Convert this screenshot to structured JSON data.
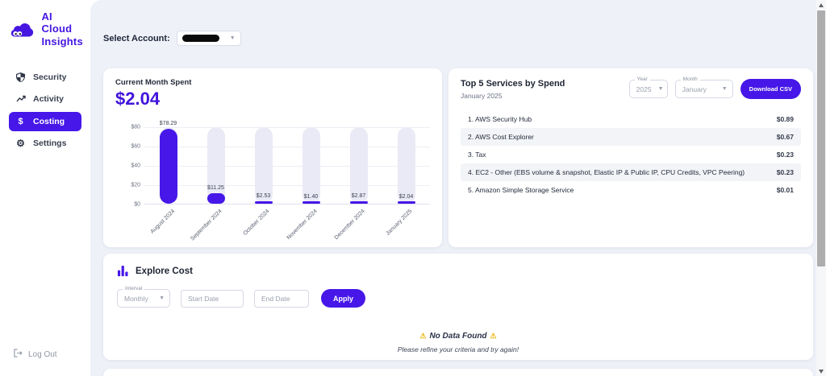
{
  "app": {
    "title_line1": "AI Cloud",
    "title_line2": "Insights"
  },
  "sidebar": {
    "items": [
      {
        "label": "Security"
      },
      {
        "label": "Activity"
      },
      {
        "label": "Costing"
      },
      {
        "label": "Settings"
      }
    ],
    "logout_label": "Log Out"
  },
  "topbar": {
    "select_account_label": "Select Account:"
  },
  "current_month_card": {
    "title": "Current Month Spent",
    "amount": "$2.04"
  },
  "chart_data": {
    "type": "bar",
    "title": "Current Month Spent",
    "categories": [
      "August 2024",
      "September 2024",
      "October 2024",
      "November 2024",
      "December 2024",
      "January 2025"
    ],
    "values": [
      78.29,
      11.25,
      2.53,
      1.4,
      2.87,
      2.04
    ],
    "value_labels": [
      "$78.29",
      "$11.25",
      "$2.53",
      "$1.40",
      "$2.87",
      "$2.04"
    ],
    "y_ticks": [
      "$80",
      "$60",
      "$40",
      "$20",
      "$0"
    ],
    "xlabel": "",
    "ylabel": "",
    "ylim": [
      0,
      80
    ],
    "grid": true,
    "legend": false,
    "bar_color": "#4617E8",
    "track_color": "#EAEAF6"
  },
  "top_services_card": {
    "title": "Top 5 Services by Spend",
    "subtitle": "January 2025",
    "year_label": "Year",
    "year_value": "2025",
    "month_label": "Month",
    "month_value": "January",
    "download_button": "Download CSV",
    "services": [
      {
        "name": "1. AWS Security Hub",
        "cost": "$0.89"
      },
      {
        "name": "2. AWS Cost Explorer",
        "cost": "$0.67"
      },
      {
        "name": "3. Tax",
        "cost": "$0.23"
      },
      {
        "name": "4. EC2 - Other (EBS volume & snapshot, Elastic IP & Public IP, CPU Credits, VPC Peering)",
        "cost": "$0.23"
      },
      {
        "name": "5. Amazon Simple Storage Service",
        "cost": "$0.01"
      }
    ]
  },
  "explore_card": {
    "title": "Explore Cost",
    "interval_label": "Interval",
    "interval_value": "Monthly",
    "start_date_placeholder": "Start Date",
    "end_date_placeholder": "End Date",
    "apply_button": "Apply",
    "warning_icon": "⚠",
    "no_data_title": "No Data Found",
    "no_data_subtitle": "Please refine your criteria and try again!"
  },
  "colors": {
    "primary": "#4617E8",
    "main_bg": "#EEF1F8",
    "bar_track": "#EAEAF6",
    "row_alt": "#F3F4F7",
    "warning": "#E9B50B"
  }
}
